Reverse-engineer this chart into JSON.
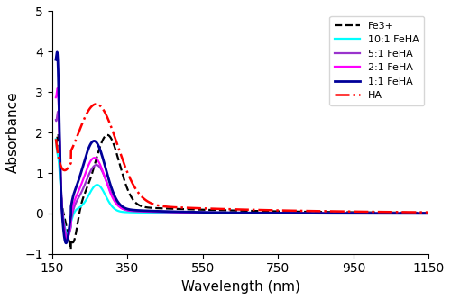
{
  "title": "",
  "xlabel": "Wavelength (nm)",
  "ylabel": "Absorbance",
  "xlim": [
    150,
    1150
  ],
  "ylim": [
    -1,
    5
  ],
  "xticks": [
    150,
    350,
    550,
    750,
    950,
    1150
  ],
  "yticks": [
    -1,
    0,
    1,
    2,
    3,
    4,
    5
  ],
  "series": {
    "Fe3+": {
      "color": "#000000",
      "linestyle": "--",
      "linewidth": 1.6
    },
    "10:1 FeHA": {
      "color": "#00FFFF",
      "linestyle": "-",
      "linewidth": 1.6
    },
    "5:1 FeHA": {
      "color": "#9933CC",
      "linestyle": "-",
      "linewidth": 1.6
    },
    "2:1 FeHA": {
      "color": "#FF00FF",
      "linestyle": "-",
      "linewidth": 1.6
    },
    "1:1 FeHA": {
      "color": "#000099",
      "linestyle": "-",
      "linewidth": 2.0
    },
    "HA": {
      "color": "#FF0000",
      "linestyle": "-.",
      "linewidth": 1.8
    }
  },
  "figsize": [
    5.0,
    3.33
  ],
  "dpi": 100
}
